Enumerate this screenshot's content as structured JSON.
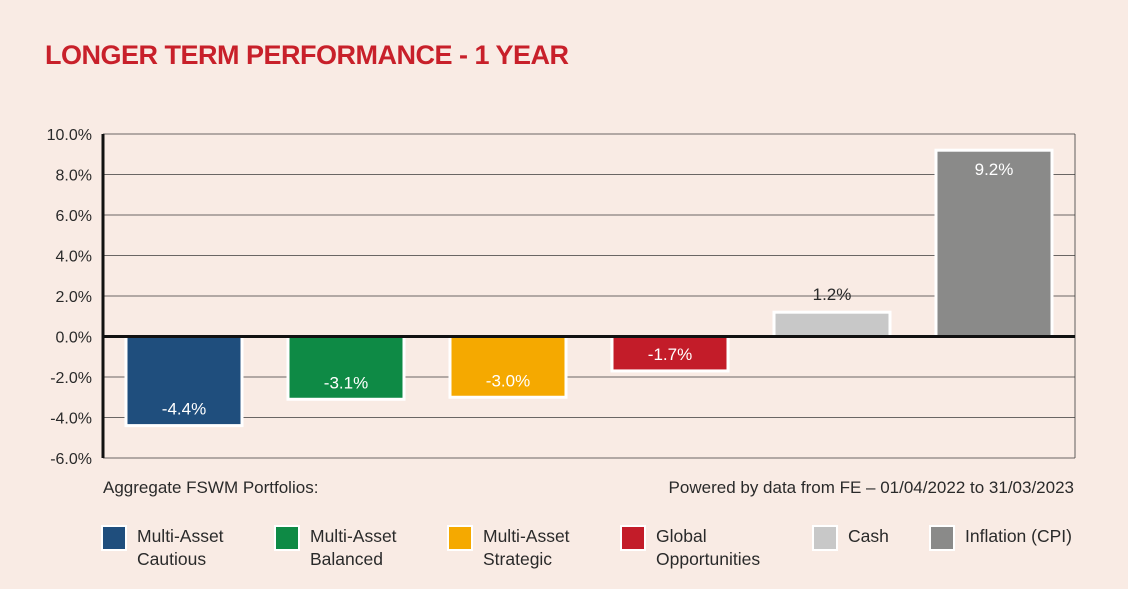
{
  "chart_data": {
    "type": "bar",
    "title": "LONGER TERM PERFORMANCE - 1 YEAR",
    "categories": [
      "Multi-Asset Cautious",
      "Multi-Asset Balanced",
      "Multi-Asset Strategic",
      "Global Opportunities",
      "Cash",
      "Inflation (CPI)"
    ],
    "values": [
      -4.4,
      -3.1,
      -3.0,
      -1.7,
      1.2,
      9.2
    ],
    "data_labels": [
      "-4.4%",
      "-3.1%",
      "-3.0%",
      "-1.7%",
      "1.2%",
      "9.2%"
    ],
    "colors": [
      "#1f4e7d",
      "#0e8a45",
      "#f5a900",
      "#c31c29",
      "#c8c8c8",
      "#8a8a89"
    ],
    "ylim": [
      -6,
      10
    ],
    "yticks": [
      10,
      8,
      6,
      4,
      2,
      0,
      -2,
      -4,
      -6
    ],
    "ytick_labels": [
      "10.0%",
      "8.0%",
      "6.0%",
      "4.0%",
      "2.0%",
      "0.0%",
      "-2.0%",
      "-4.0%",
      "-6.0%"
    ],
    "grid": true,
    "xlabel": "",
    "ylabel": "",
    "legend_position": "bottom"
  },
  "notes": {
    "left": "Aggregate FSWM Portfolios:",
    "right": "Powered by data from FE – 01/04/2022 to 31/03/2023"
  },
  "legend": [
    {
      "label": "Multi-Asset\nCautious",
      "color": "#1f4e7d"
    },
    {
      "label": "Multi-Asset\nBalanced",
      "color": "#0e8a45"
    },
    {
      "label": "Multi-Asset\nStrategic",
      "color": "#f5a900"
    },
    {
      "label": "Global\nOpportunities",
      "color": "#c31c29"
    },
    {
      "label": "Cash",
      "color": "#c8c8c8"
    },
    {
      "label": "Inflation (CPI)",
      "color": "#8a8a89"
    }
  ]
}
